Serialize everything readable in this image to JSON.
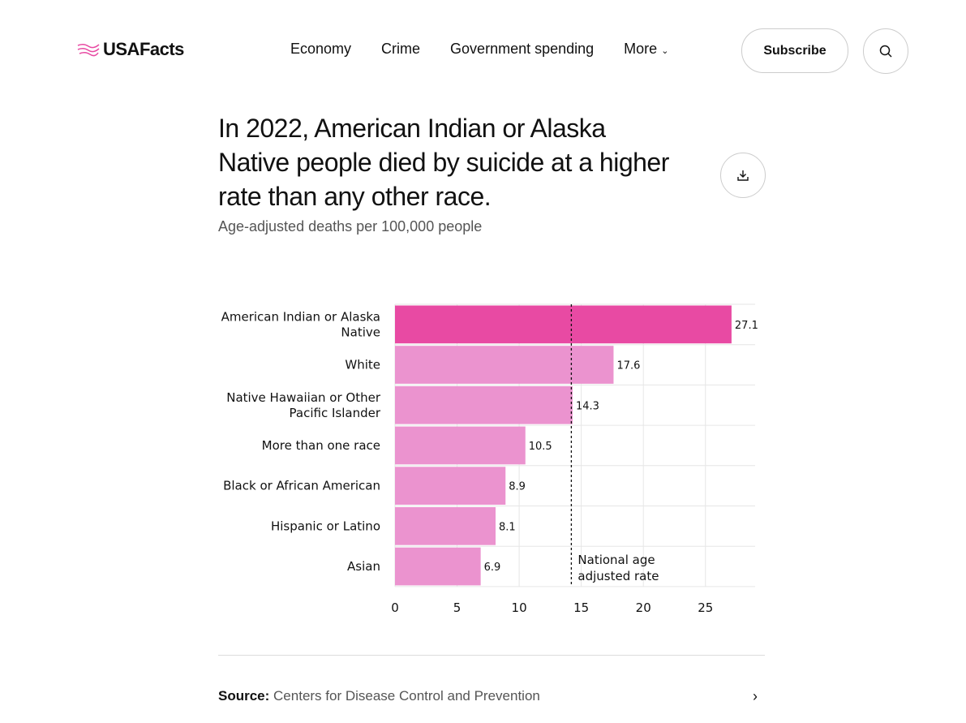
{
  "header": {
    "logo": "USAFacts",
    "nav": [
      "Economy",
      "Crime",
      "Government spending",
      "More"
    ],
    "subscribe": "Subscribe"
  },
  "title": "In 2022, American Indian or Alaska Native people died by suicide at a higher rate than any other race.",
  "subtitle": "Age-adjusted deaths per 100,000 people",
  "source": {
    "label": "Source:",
    "value": "Centers for Disease Control and Prevention"
  },
  "colors": {
    "highlight": "#e84aa3",
    "bar": "#eb93cf"
  },
  "chart_data": {
    "type": "bar",
    "orientation": "horizontal",
    "categories": [
      "American Indian or Alaska Native",
      "White",
      "Native Hawaiian or Other Pacific Islander",
      "More than one race",
      "Black or African American",
      "Hispanic or Latino",
      "Asian"
    ],
    "category_lines": [
      [
        "American Indian or Alaska",
        "Native"
      ],
      [
        "White"
      ],
      [
        "Native Hawaiian or Other",
        "Pacific Islander"
      ],
      [
        "More than one race"
      ],
      [
        "Black or African American"
      ],
      [
        "Hispanic or Latino"
      ],
      [
        "Asian"
      ]
    ],
    "values": [
      27.1,
      17.6,
      14.3,
      10.5,
      8.9,
      8.1,
      6.9
    ],
    "value_labels": [
      "27.1",
      "17.6",
      "14.3",
      "10.5",
      "8.9",
      "8.1",
      "6.9"
    ],
    "xlim": [
      0,
      29
    ],
    "xticks": [
      0,
      5,
      10,
      15,
      20,
      25
    ],
    "xtick_labels": [
      "0",
      "5",
      "10",
      "15",
      "20",
      "25"
    ],
    "reference_line": {
      "value": 14.2,
      "label_lines": [
        "National age",
        "adjusted rate"
      ]
    },
    "grid": true
  }
}
